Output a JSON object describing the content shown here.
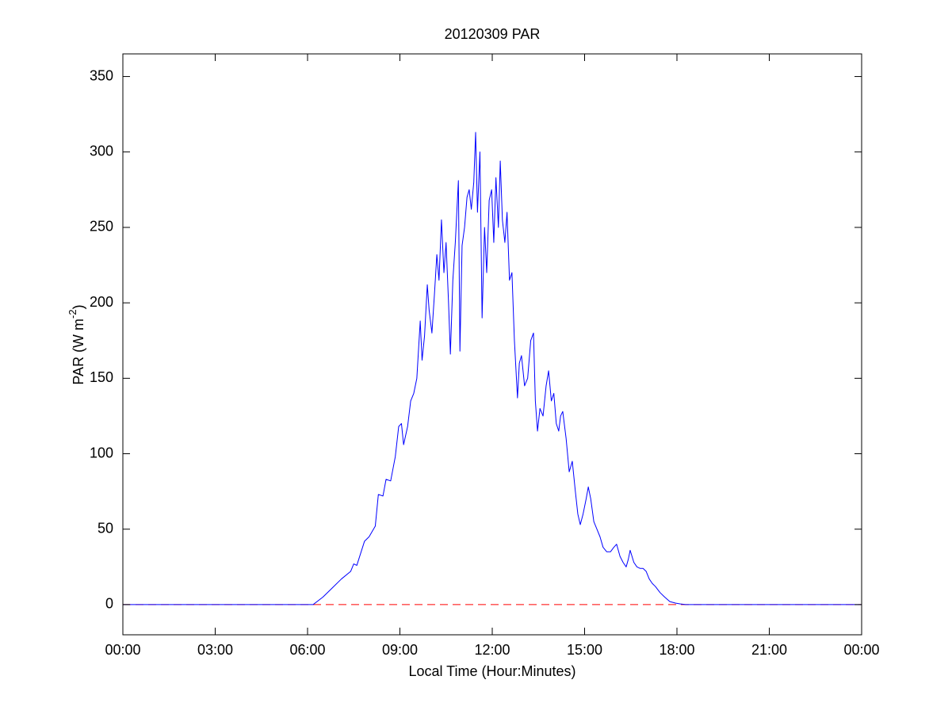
{
  "chart_data": {
    "type": "line",
    "title": "20120309 PAR",
    "xlabel": "Local Time (Hour:Minutes)",
    "ylabel": [
      "PAR (W m",
      "-2",
      ")"
    ],
    "xlim": [
      0,
      24
    ],
    "ylim": [
      -20,
      365
    ],
    "xticks": [
      {
        "value": 0,
        "label": "00:00"
      },
      {
        "value": 3,
        "label": "03:00"
      },
      {
        "value": 6,
        "label": "06:00"
      },
      {
        "value": 9,
        "label": "09:00"
      },
      {
        "value": 12,
        "label": "12:00"
      },
      {
        "value": 15,
        "label": "15:00"
      },
      {
        "value": 18,
        "label": "18:00"
      },
      {
        "value": 21,
        "label": "21:00"
      },
      {
        "value": 24,
        "label": "00:00"
      }
    ],
    "yticks": [
      0,
      50,
      100,
      150,
      200,
      250,
      300,
      350
    ],
    "grid": false,
    "reference_line": {
      "value": 0,
      "color": "#ff0000",
      "style": "dashed"
    },
    "x": [
      0,
      6,
      6.18,
      6.5,
      6.8,
      7.1,
      7.4,
      7.5,
      7.6,
      7.85,
      8.0,
      8.2,
      8.3,
      8.45,
      8.55,
      8.7,
      8.85,
      8.96,
      9.05,
      9.12,
      9.25,
      9.35,
      9.45,
      9.55,
      9.66,
      9.72,
      9.8,
      9.89,
      9.95,
      10.04,
      10.12,
      10.2,
      10.27,
      10.35,
      10.43,
      10.5,
      10.58,
      10.64,
      10.72,
      10.8,
      10.9,
      10.95,
      11.02,
      11.1,
      11.18,
      11.25,
      11.32,
      11.4,
      11.46,
      11.52,
      11.6,
      11.67,
      11.75,
      11.82,
      11.9,
      11.98,
      12.05,
      12.12,
      12.2,
      12.26,
      12.33,
      12.41,
      12.48,
      12.56,
      12.64,
      12.72,
      12.82,
      12.88,
      12.95,
      13.05,
      13.15,
      13.25,
      13.34,
      13.4,
      13.47,
      13.55,
      13.65,
      13.75,
      13.83,
      13.92,
      14.0,
      14.08,
      14.16,
      14.22,
      14.29,
      14.4,
      14.5,
      14.6,
      14.7,
      14.78,
      14.86,
      14.95,
      15.05,
      15.12,
      15.2,
      15.3,
      15.4,
      15.5,
      15.6,
      15.72,
      15.84,
      15.95,
      16.04,
      16.15,
      16.25,
      16.35,
      16.42,
      16.48,
      16.6,
      16.7,
      16.8,
      16.9,
      17.0,
      17.1,
      17.2,
      17.3,
      17.45,
      17.6,
      17.77,
      17.95,
      18.1,
      18.28,
      24
    ],
    "series": [
      {
        "color": "#0000ff",
        "values": [
          0,
          0,
          0,
          5,
          11,
          17,
          22,
          27,
          26,
          42,
          45,
          52,
          73,
          72,
          83,
          82,
          98,
          118,
          120,
          106,
          118,
          135,
          140,
          150,
          188,
          162,
          178,
          212,
          195,
          180,
          205,
          232,
          215,
          255,
          220,
          240,
          200,
          166,
          215,
          240,
          281,
          168,
          238,
          250,
          270,
          275,
          262,
          280,
          313,
          260,
          300,
          190,
          250,
          220,
          268,
          275,
          240,
          283,
          250,
          294,
          255,
          240,
          260,
          215,
          220,
          175,
          137,
          160,
          165,
          145,
          150,
          175,
          180,
          135,
          115,
          130,
          125,
          145,
          155,
          135,
          140,
          120,
          115,
          125,
          128,
          110,
          88,
          95,
          75,
          60,
          53,
          60,
          70,
          78,
          70,
          55,
          50,
          45,
          38,
          35,
          35,
          38,
          40,
          32,
          28,
          25,
          30,
          36,
          28,
          25,
          24,
          24,
          22,
          17,
          14,
          12,
          8,
          5,
          2,
          1,
          0.5,
          0,
          0
        ]
      }
    ]
  }
}
